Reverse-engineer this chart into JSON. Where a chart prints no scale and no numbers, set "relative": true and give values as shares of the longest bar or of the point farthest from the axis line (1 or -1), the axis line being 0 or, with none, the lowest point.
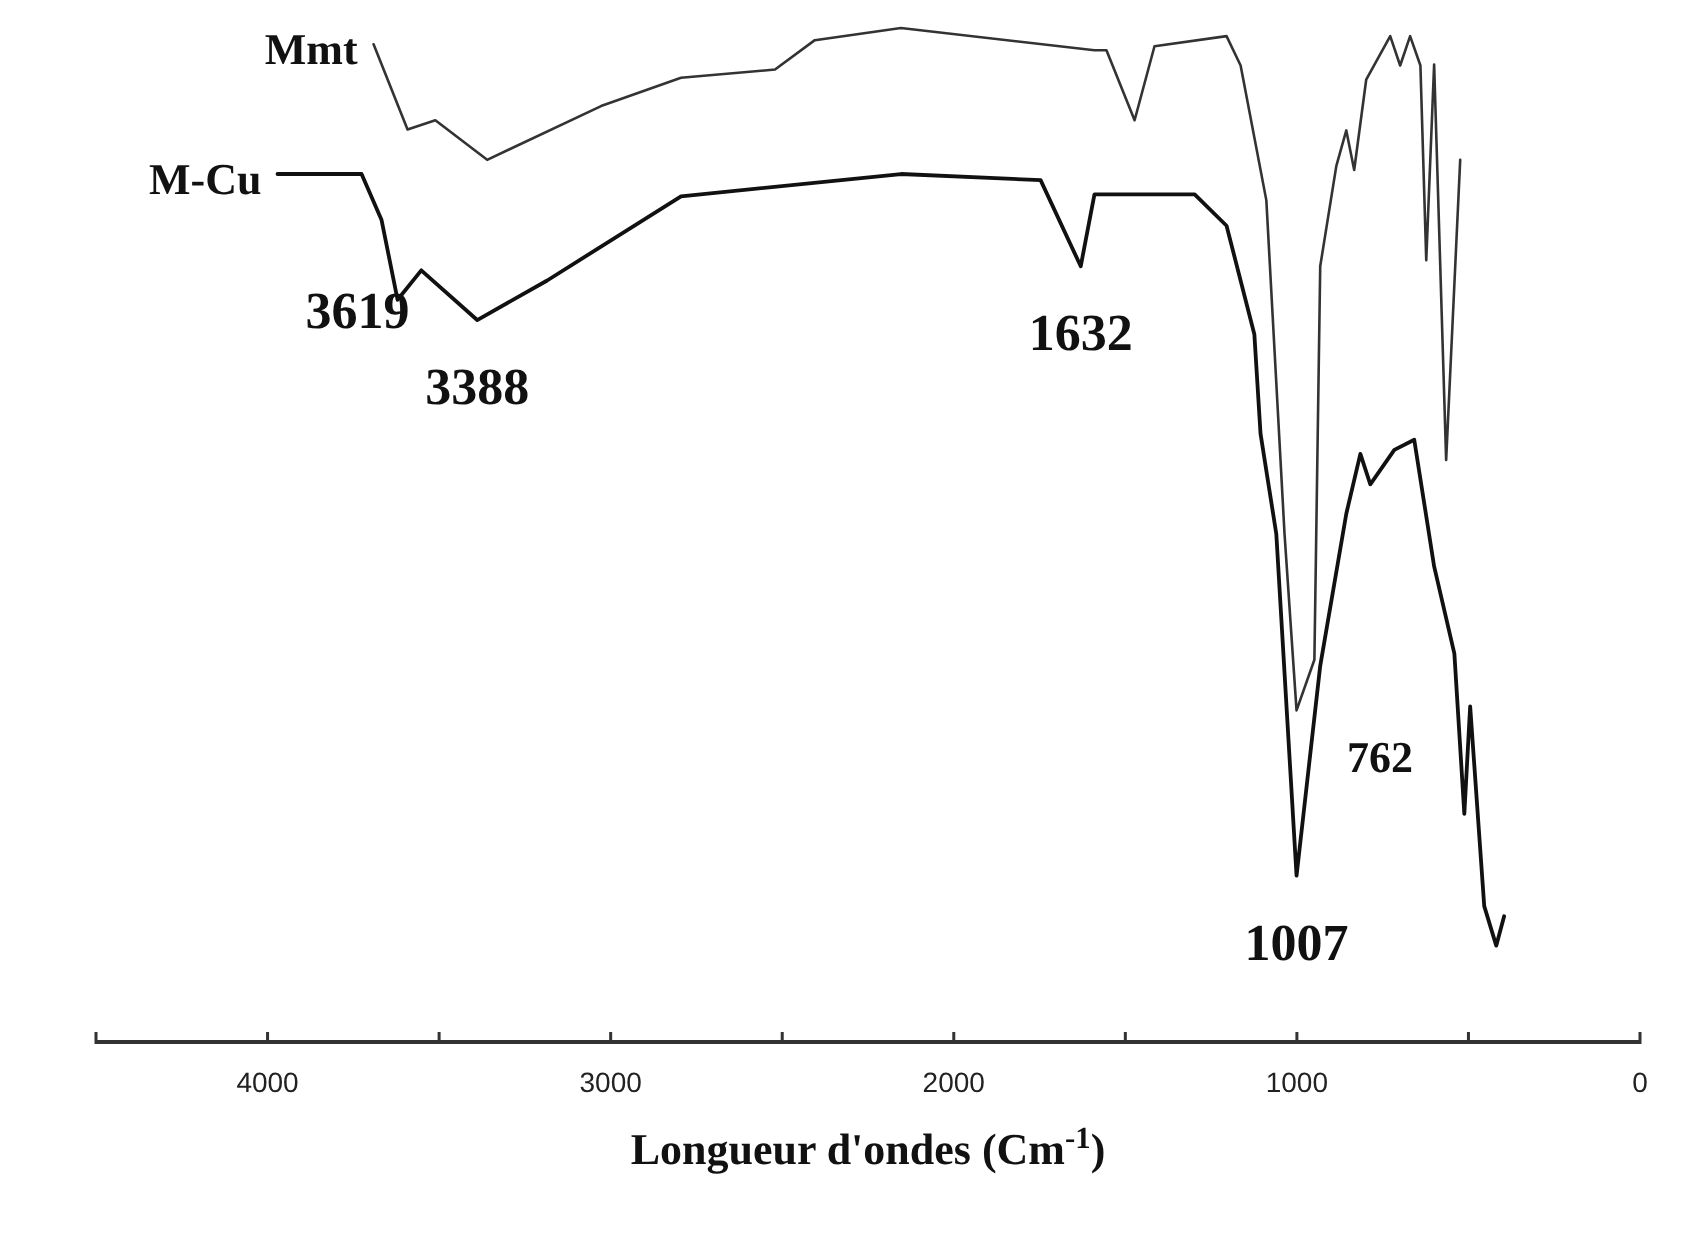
{
  "chart_data": {
    "type": "line",
    "relative": true,
    "xlabel": "Longueur d'ondes (Cm$^{-1}$)",
    "xlim": [
      4500,
      0
    ],
    "xticks": [
      {
        "value": 4500,
        "label": null
      },
      4000,
      {
        "value": 3500,
        "label": null
      },
      3000,
      {
        "value": 2500,
        "label": null
      },
      2000,
      {
        "value": 1500,
        "label": null
      },
      1000,
      {
        "value": 500,
        "label": null
      },
      0
    ],
    "legend": false,
    "marker": "none",
    "line_style": "solid",
    "grid": false,
    "tick_labels": "x",
    "series": [
      {
        "name": "Mmt",
        "color": "#333333",
        "x": [
          3691,
          3592,
          3511,
          3360,
          3028,
          2795,
          2521,
          2405,
          2154,
          1590,
          1555,
          1473,
          1415,
          1205,
          1164,
          1089,
          1036,
          1001,
          949,
          932,
          885,
          856,
          833,
          798,
          728,
          699,
          670,
          640,
          623,
          600,
          565,
          524
        ],
        "values": [
          0.984,
          0.9,
          0.909,
          0.87,
          0.923,
          0.951,
          0.959,
          0.988,
          1.0,
          0.978,
          0.978,
          0.909,
          0.982,
          0.992,
          0.963,
          0.83,
          0.501,
          0.327,
          0.377,
          0.765,
          0.864,
          0.899,
          0.86,
          0.949,
          0.992,
          0.963,
          0.992,
          0.963,
          0.771,
          0.964,
          0.574,
          0.87
        ]
      },
      {
        "name": "M-Cu",
        "color": "#111111",
        "x": [
          3971,
          3726,
          3668,
          3621,
          3552,
          3389,
          3185,
          2795,
          2154,
          1747,
          1630,
          1590,
          1298,
          1205,
          1124,
          1106,
          1060,
          1001,
          932,
          856,
          815,
          786,
          716,
          658,
          600,
          541,
          512,
          495,
          454,
          419,
          396
        ],
        "values": [
          0.856,
          0.856,
          0.811,
          0.732,
          0.761,
          0.712,
          0.751,
          0.834,
          0.856,
          0.85,
          0.765,
          0.836,
          0.836,
          0.805,
          0.698,
          0.6,
          0.501,
          0.164,
          0.371,
          0.521,
          0.58,
          0.55,
          0.584,
          0.594,
          0.469,
          0.383,
          0.225,
          0.331,
          0.134,
          0.095,
          0.124
        ]
      }
    ],
    "annotations": [
      {
        "text": "3619",
        "x": 3621,
        "y": 0.732
      },
      {
        "text": "3388",
        "x": 3389,
        "y": 0.712
      },
      {
        "text": "1632",
        "x": 1630,
        "y": 0.765
      },
      {
        "text": "1007",
        "x": 1001,
        "y": 0.164
      },
      "762"
    ]
  }
}
